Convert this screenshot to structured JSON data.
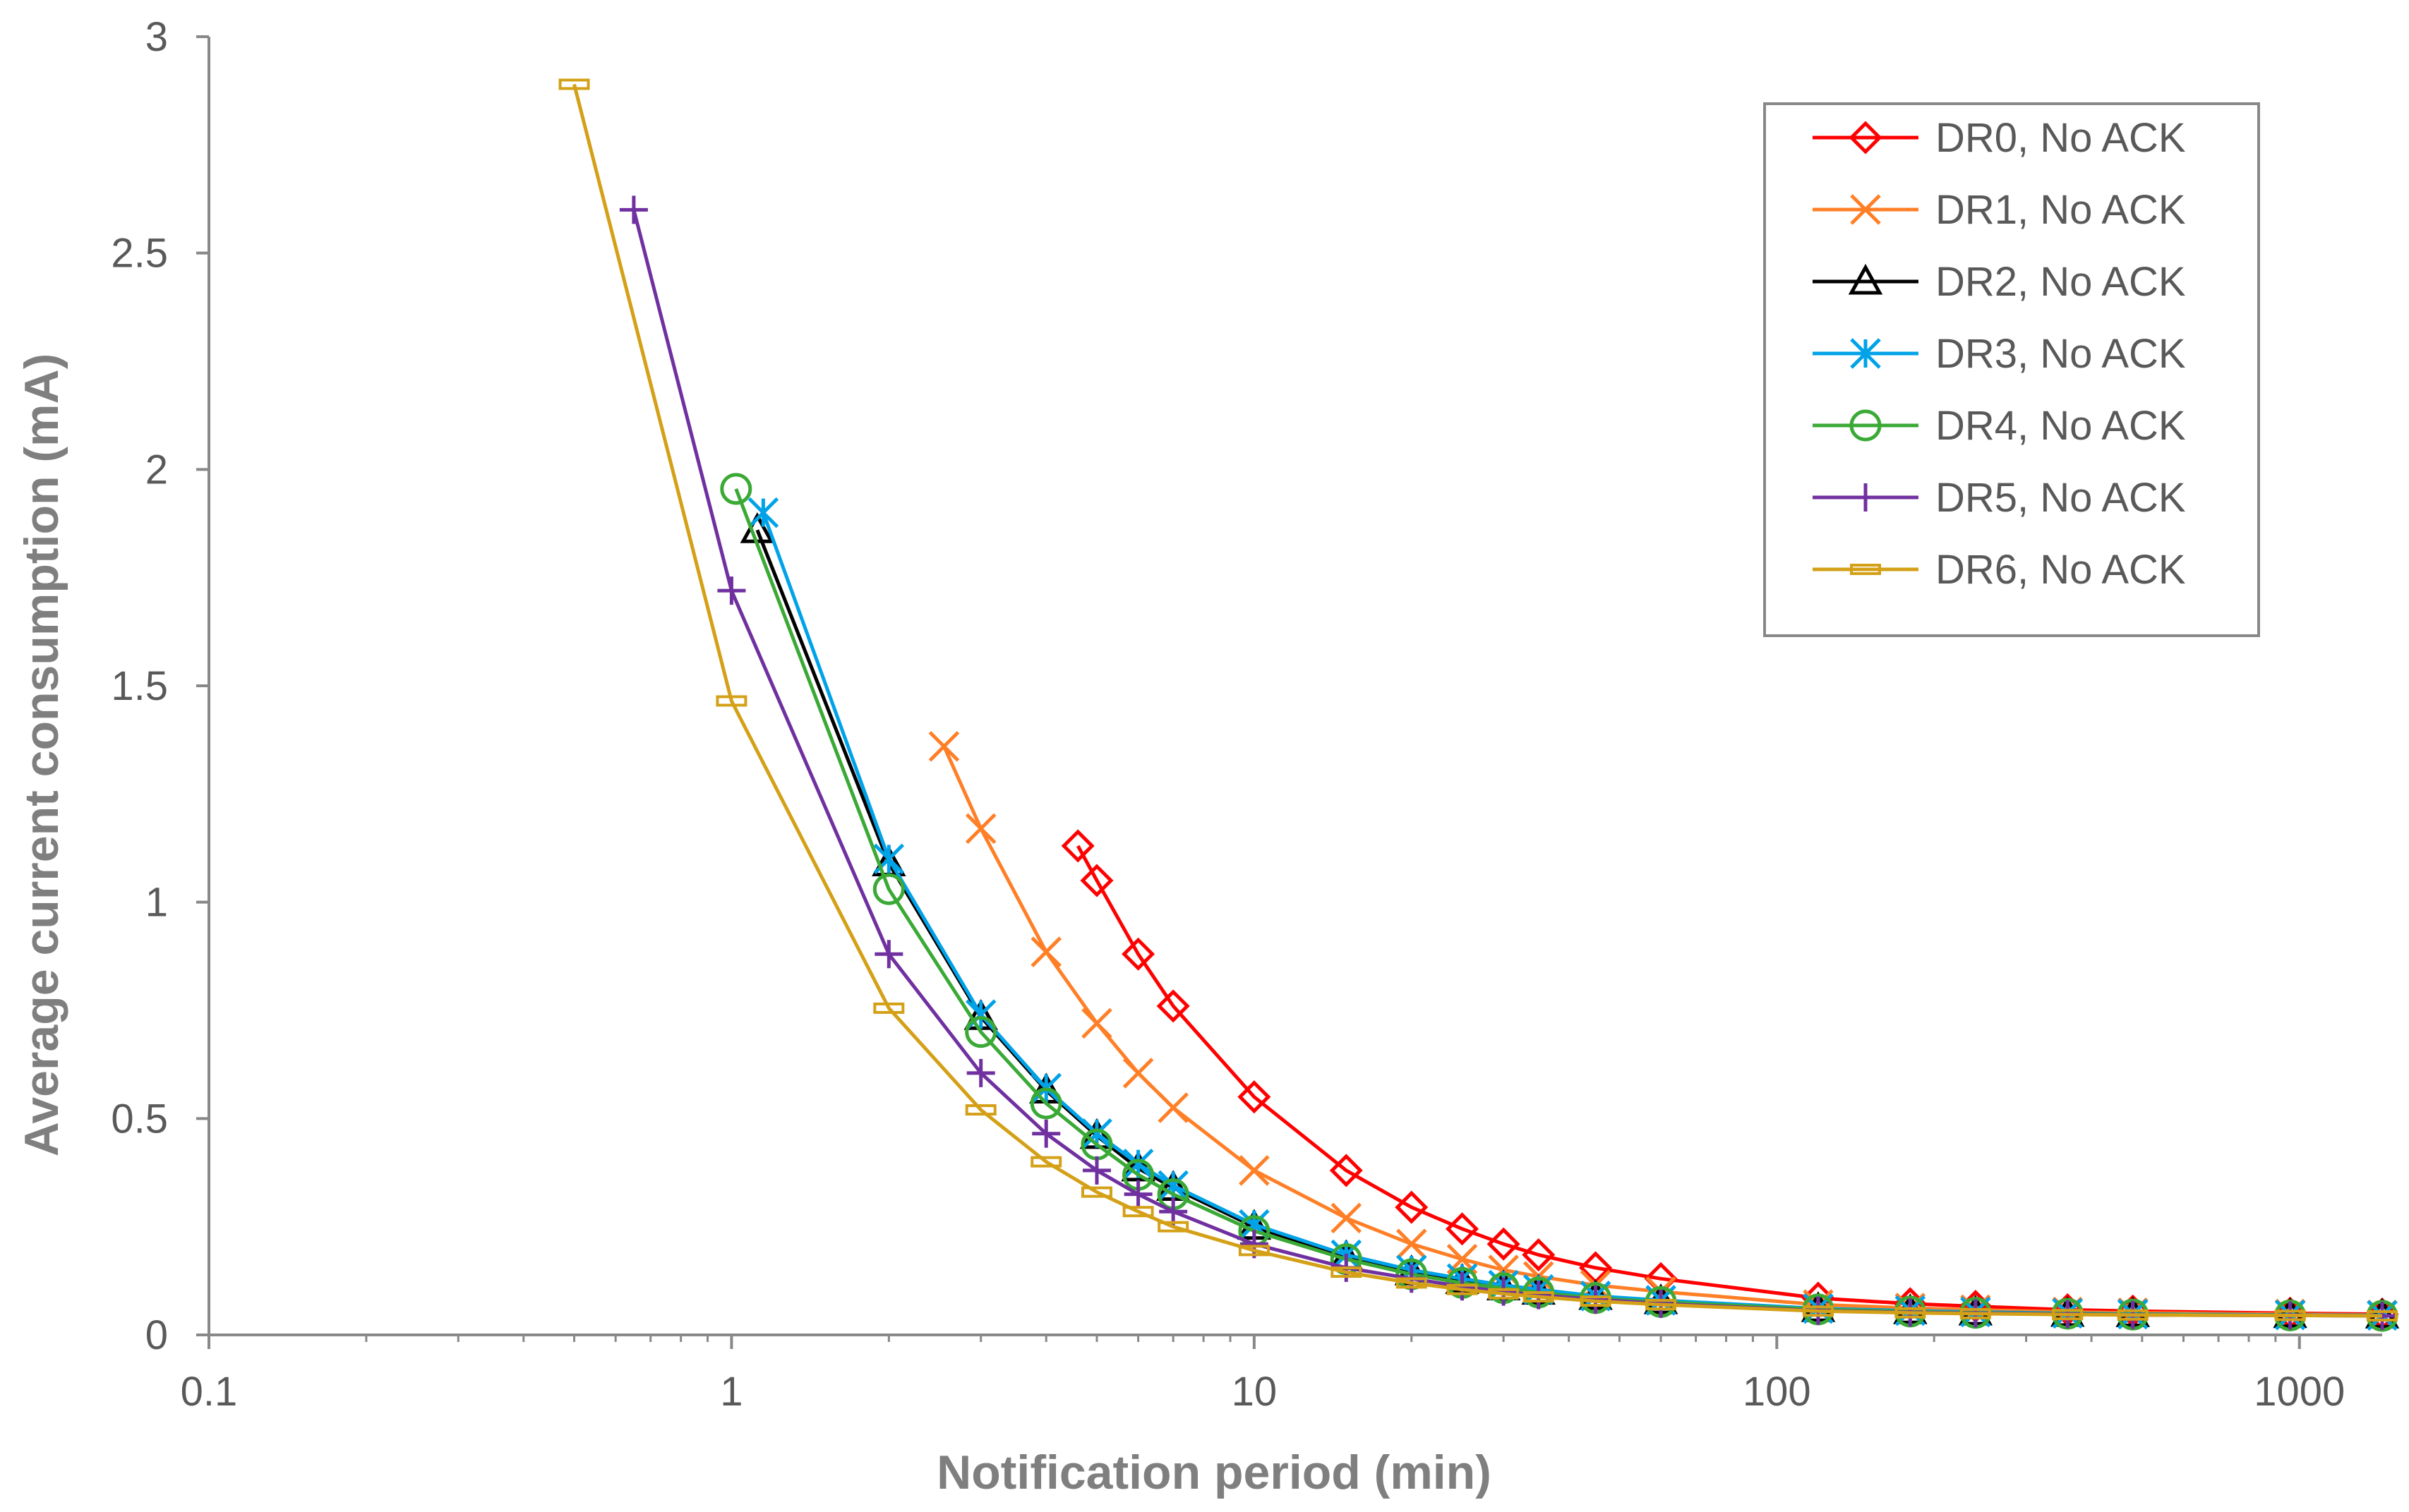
{
  "chart_data": {
    "type": "line",
    "title": "",
    "xlabel": "Notification period (min)",
    "ylabel": "Average current consumption (mA)",
    "xscale": "log",
    "xlim": [
      0.1,
      1440
    ],
    "ylim": [
      0,
      3
    ],
    "xticks": [
      0.1,
      1,
      10,
      100,
      1000
    ],
    "xtick_labels": [
      "0.1",
      "1",
      "10",
      "100",
      "1000"
    ],
    "yticks": [
      0,
      0.5,
      1,
      1.5,
      2,
      2.5,
      3
    ],
    "ytick_labels": [
      "0",
      "0.5",
      "1",
      "1.5",
      "2",
      "2.5",
      "3"
    ],
    "grid": false,
    "legend_position": "top-right",
    "series": [
      {
        "name": "DR0, No ACK",
        "color": "#ff0000",
        "marker": "diamond",
        "x": [
          4.6,
          5,
          6,
          7,
          10,
          15,
          20,
          25,
          30,
          35,
          45,
          60,
          120,
          180,
          240,
          360,
          480,
          960,
          1440
        ],
        "y": [
          1.13,
          1.05,
          0.88,
          0.76,
          0.55,
          0.38,
          0.295,
          0.245,
          0.21,
          0.185,
          0.155,
          0.13,
          0.085,
          0.072,
          0.066,
          0.058,
          0.055,
          0.05,
          0.048
        ]
      },
      {
        "name": "DR1, No ACK",
        "color": "#ff7f27",
        "marker": "x",
        "x": [
          2.55,
          3,
          4,
          5,
          6,
          7,
          10,
          15,
          20,
          25,
          30,
          35,
          45,
          60,
          120,
          180,
          240,
          360,
          480,
          960,
          1440
        ],
        "y": [
          1.36,
          1.17,
          0.885,
          0.72,
          0.605,
          0.525,
          0.38,
          0.27,
          0.21,
          0.175,
          0.15,
          0.135,
          0.115,
          0.1,
          0.07,
          0.062,
          0.058,
          0.053,
          0.051,
          0.048,
          0.046
        ]
      },
      {
        "name": "DR2, No ACK",
        "color": "#000000",
        "marker": "triangle",
        "x": [
          1.12,
          2,
          3,
          4,
          5,
          6,
          7,
          10,
          15,
          20,
          25,
          30,
          35,
          45,
          60,
          120,
          180,
          240,
          360,
          480,
          960,
          1440
        ],
        "y": [
          1.86,
          1.09,
          0.735,
          0.565,
          0.46,
          0.385,
          0.34,
          0.25,
          0.18,
          0.145,
          0.125,
          0.11,
          0.1,
          0.088,
          0.078,
          0.06,
          0.055,
          0.052,
          0.049,
          0.048,
          0.046,
          0.045
        ]
      },
      {
        "name": "DR3, No ACK",
        "color": "#00a2e8",
        "marker": "asterisk",
        "x": [
          1.15,
          2,
          3,
          4,
          5,
          6,
          7,
          10,
          15,
          20,
          25,
          30,
          35,
          45,
          60,
          120,
          180,
          240,
          360,
          480,
          960,
          1440
        ],
        "y": [
          1.9,
          1.1,
          0.74,
          0.57,
          0.465,
          0.395,
          0.345,
          0.255,
          0.185,
          0.15,
          0.13,
          0.115,
          0.105,
          0.09,
          0.08,
          0.061,
          0.056,
          0.053,
          0.05,
          0.048,
          0.046,
          0.045
        ]
      },
      {
        "name": "DR4, No ACK",
        "color": "#3aa935",
        "marker": "circle",
        "x": [
          1.02,
          2,
          3,
          4,
          5,
          6,
          7,
          10,
          15,
          20,
          25,
          30,
          35,
          45,
          60,
          120,
          180,
          240,
          360,
          480,
          960,
          1440
        ],
        "y": [
          1.955,
          1.03,
          0.7,
          0.535,
          0.44,
          0.37,
          0.325,
          0.24,
          0.175,
          0.14,
          0.12,
          0.108,
          0.098,
          0.085,
          0.076,
          0.059,
          0.054,
          0.051,
          0.049,
          0.047,
          0.045,
          0.044
        ]
      },
      {
        "name": "DR5, No ACK",
        "color": "#7030a0",
        "marker": "plus",
        "x": [
          0.65,
          1,
          2,
          3,
          4,
          5,
          6,
          7,
          10,
          15,
          20,
          25,
          30,
          35,
          45,
          60,
          120,
          180,
          240,
          360,
          480,
          960,
          1440
        ],
        "y": [
          2.6,
          1.72,
          0.88,
          0.605,
          0.465,
          0.38,
          0.325,
          0.285,
          0.21,
          0.155,
          0.13,
          0.112,
          0.1,
          0.092,
          0.082,
          0.072,
          0.056,
          0.052,
          0.05,
          0.048,
          0.046,
          0.045,
          0.044
        ]
      },
      {
        "name": "DR6, No ACK",
        "color": "#d4a017",
        "marker": "dash",
        "x": [
          0.5,
          1,
          2,
          3,
          4,
          5,
          6,
          7,
          10,
          15,
          20,
          25,
          30,
          35,
          45,
          60,
          120,
          180,
          240,
          360,
          480,
          960,
          1440
        ],
        "y": [
          2.89,
          1.465,
          0.755,
          0.52,
          0.4,
          0.33,
          0.285,
          0.25,
          0.195,
          0.145,
          0.12,
          0.105,
          0.095,
          0.088,
          0.078,
          0.07,
          0.055,
          0.051,
          0.049,
          0.047,
          0.046,
          0.045,
          0.044
        ]
      }
    ]
  }
}
